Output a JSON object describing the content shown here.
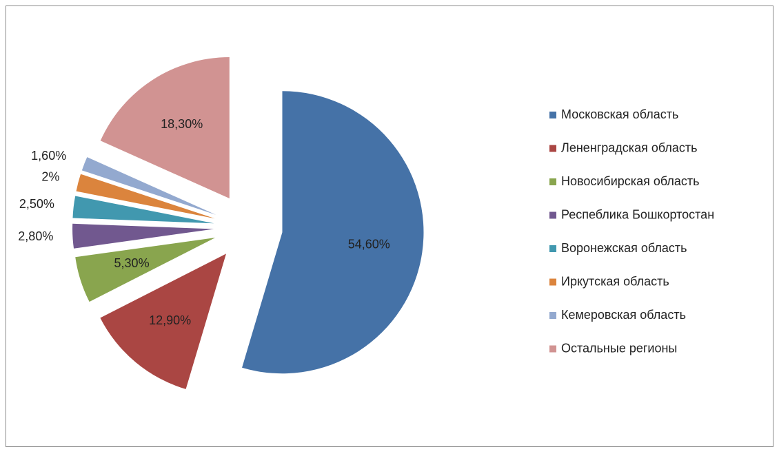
{
  "chart_data": {
    "type": "pie",
    "categories": [
      "Московская область",
      "Ленeнградская область",
      "Новосибирская область",
      "Респеблика Бошкортостан",
      "Воронежская область",
      "Иркутская область",
      "Кемеровская область",
      "Остальные регионы"
    ],
    "values": [
      54.6,
      12.9,
      5.3,
      2.8,
      2.5,
      2,
      1.6,
      18.3
    ],
    "value_labels": [
      "54,60%",
      "12,90%",
      "5,30%",
      "2,80%",
      "2,50%",
      "2%",
      "1,60%",
      "18,30%"
    ],
    "colors": [
      "#4572a7",
      "#aa4643",
      "#89a54e",
      "#71588f",
      "#4198af",
      "#db843d",
      "#93a9cf",
      "#d19392"
    ],
    "legend": "right"
  }
}
